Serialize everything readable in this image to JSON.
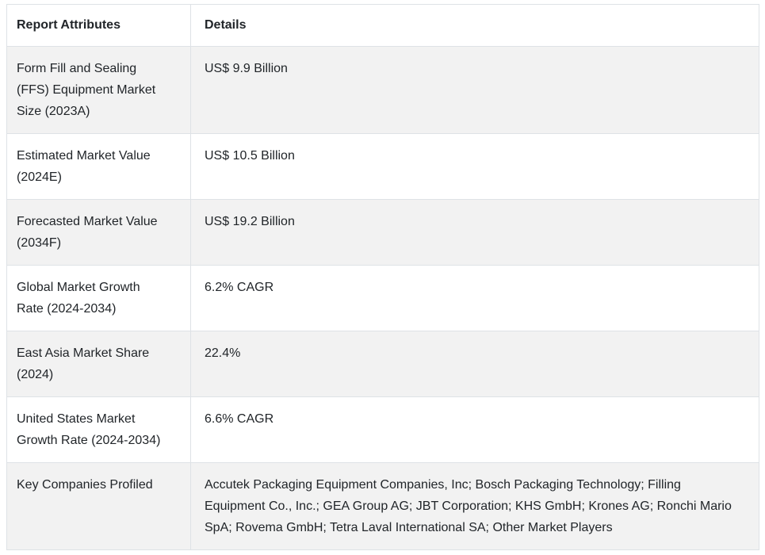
{
  "table": {
    "headers": {
      "attribute": "Report Attributes",
      "details": "Details"
    },
    "rows": [
      {
        "attribute": "Form Fill and Sealing (FFS) Equipment Market Size (2023A)",
        "detail": "US$ 9.9 Billion"
      },
      {
        "attribute": "Estimated Market Value (2024E)",
        "detail": "US$ 10.5 Billion"
      },
      {
        "attribute": "Forecasted Market Value (2034F)",
        "detail": "US$ 19.2 Billion"
      },
      {
        "attribute": "Global Market Growth Rate (2024-2034)",
        "detail": "6.2% CAGR"
      },
      {
        "attribute": "East Asia Market Share (2024)",
        "detail": "22.4%"
      },
      {
        "attribute": "United States Market Growth Rate (2024-2034)",
        "detail": "6.6% CAGR"
      },
      {
        "attribute": "Key Companies Profiled",
        "detail": "Accutek Packaging Equipment Companies, Inc; Bosch Packaging Technology; Filling Equipment Co., Inc.; GEA Group AG; JBT Corporation; KHS GmbH; Krones AG; Ronchi Mario SpA; Rovema GmbH; Tetra Laval International SA; Other Market Players"
      }
    ]
  },
  "colors": {
    "text": "#212529",
    "border": "#dee2e6",
    "row_stripe": "#f2f2f2",
    "row_plain": "#ffffff"
  }
}
